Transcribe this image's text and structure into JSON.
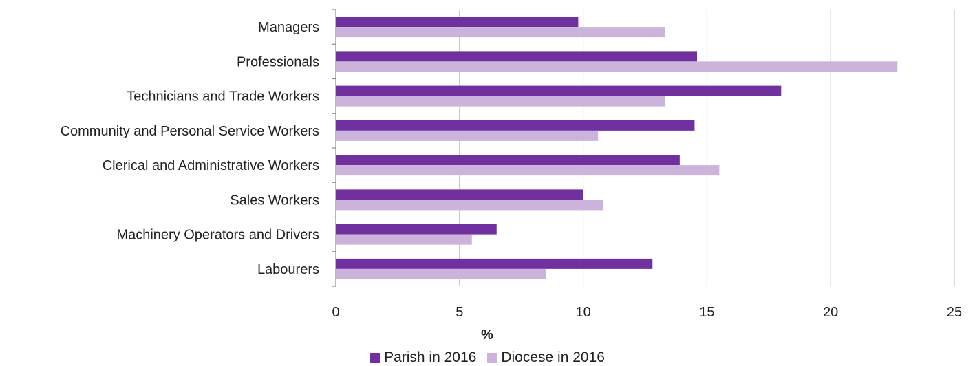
{
  "chart_data": {
    "type": "bar",
    "orientation": "horizontal",
    "categories": [
      "Managers",
      "Professionals",
      "Technicians and Trade Workers",
      "Community and Personal Service Workers",
      "Clerical and Administrative Workers",
      "Sales Workers",
      "Machinery Operators and Drivers",
      "Labourers"
    ],
    "series": [
      {
        "name": "Parish in 2016",
        "color": "#7030a0",
        "values": [
          9.8,
          14.6,
          18.0,
          14.5,
          13.9,
          10.0,
          6.5,
          12.8
        ]
      },
      {
        "name": "Diocese in 2016",
        "color": "#ccb3dc",
        "values": [
          13.3,
          22.7,
          13.3,
          10.6,
          15.5,
          10.8,
          5.5,
          8.5
        ]
      }
    ],
    "xlabel": "%",
    "xlim": [
      0,
      25
    ],
    "xticks": [
      "0",
      "5",
      "10",
      "15",
      "20",
      "25"
    ],
    "grid": "vertical",
    "legend_position": "bottom"
  }
}
